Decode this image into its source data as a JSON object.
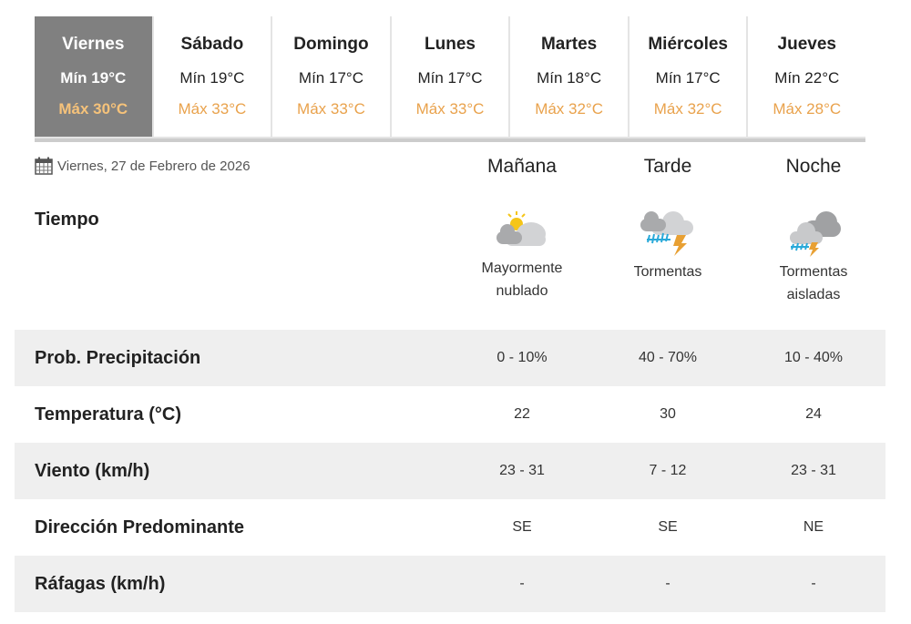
{
  "days": [
    {
      "name": "Viernes",
      "min": "Mín 19°C",
      "max": "Máx 30°C",
      "active": true
    },
    {
      "name": "Sábado",
      "min": "Mín 19°C",
      "max": "Máx 33°C"
    },
    {
      "name": "Domingo",
      "min": "Mín 17°C",
      "max": "Máx 33°C"
    },
    {
      "name": "Lunes",
      "min": "Mín 17°C",
      "max": "Máx 33°C"
    },
    {
      "name": "Martes",
      "min": "Mín 18°C",
      "max": "Máx 32°C"
    },
    {
      "name": "Miércoles",
      "min": "Mín 17°C",
      "max": "Máx 32°C"
    },
    {
      "name": "Jueves",
      "min": "Mín 22°C",
      "max": "Máx 28°C"
    }
  ],
  "date": "Viernes, 27 de Febrero de 2026",
  "periods": [
    "Mañana",
    "Tarde",
    "Noche"
  ],
  "weather": {
    "label": "Tiempo",
    "items": [
      {
        "icon": "partly-cloudy-icon",
        "text1": "Mayormente",
        "text2": "nublado"
      },
      {
        "icon": "thunderstorm-icon",
        "text1": "Tormentas",
        "text2": ""
      },
      {
        "icon": "isolated-thunderstorm-icon",
        "text1": "Tormentas",
        "text2": "aisladas"
      }
    ]
  },
  "rows": [
    {
      "label": "Prob. Precipitación",
      "values": [
        "0 - 10%",
        "40 - 70%",
        "10 - 40%"
      ]
    },
    {
      "label": "Temperatura (°C)",
      "values": [
        "22",
        "30",
        "24"
      ]
    },
    {
      "label": "Viento (km/h)",
      "values": [
        "23 - 31",
        "7 - 12",
        "23 - 31"
      ]
    },
    {
      "label": "Dirección Predominante",
      "values": [
        "SE",
        "SE",
        "NE"
      ]
    },
    {
      "label": "Ráfagas (km/h)",
      "values": [
        "-",
        "-",
        "-"
      ]
    }
  ],
  "colors": {
    "active_tab": "#808080",
    "max_temp": "#e9a24c",
    "row_alt": "#efefef"
  }
}
